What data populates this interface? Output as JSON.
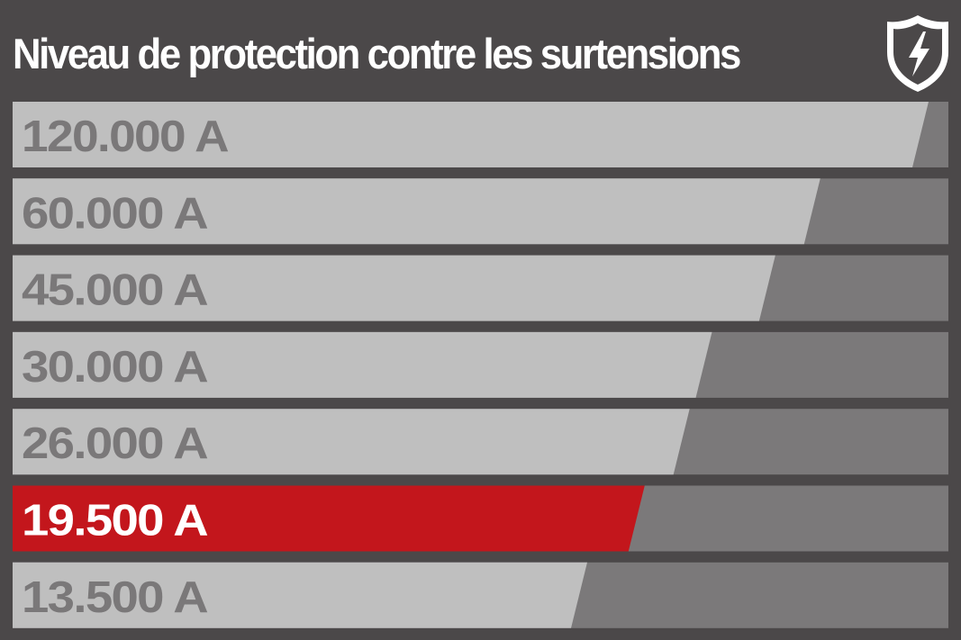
{
  "chart_data": {
    "type": "bar",
    "orientation": "horizontal",
    "title": "Niveau de protection contre les surtensions",
    "unit": "A",
    "categories": [
      "120.000 A",
      "60.000 A",
      "45.000 A",
      "30.000 A",
      "26.000 A",
      "19.500 A",
      "13.500 A"
    ],
    "values": [
      120000,
      60000,
      45000,
      30000,
      26000,
      19500,
      13500
    ],
    "highlight_index": 5,
    "legend": "none",
    "grid": false
  },
  "icons": {
    "badge": "lightning-shield-icon"
  },
  "colors": {
    "background": "#4b4849",
    "track": "#7b797a",
    "bar": "#bfbfbf",
    "bar_highlight": "#c3161c",
    "label": "#7a7879",
    "label_highlight": "#ffffff",
    "title": "#ffffff"
  }
}
